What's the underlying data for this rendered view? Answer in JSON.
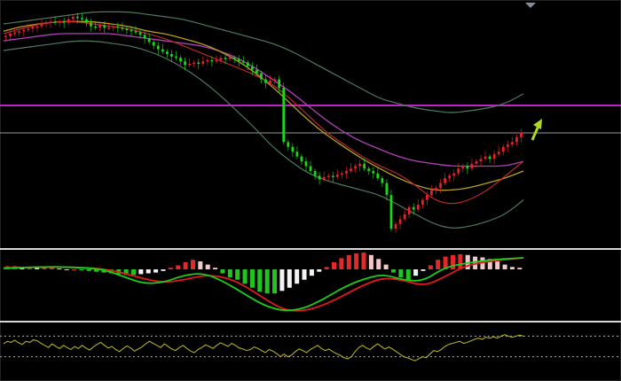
{
  "colors": {
    "background": "#000000",
    "frame": "#d8d8d8",
    "bull_candle": "#e8202a",
    "bear_candle": "#18d818",
    "wick": "#d0d0d0",
    "bollinger": "#4f7a5f",
    "ma_fast": "#c82a2a",
    "ma_mid": "#b8a020",
    "ma_slow": "#b040b8",
    "horizontal_line": "#c024c8",
    "grid_line": "#9a9a9a",
    "macd_pos_strong": "#e02a2a",
    "macd_pos_weak": "#f0c8c8",
    "macd_neg_strong": "#22c422",
    "macd_neg_weak": "#f2f2f2",
    "macd_line": "#1ccc1c",
    "signal_line": "#e01a1a",
    "oscillator": "#b6ac26",
    "dotted_level": "#aaaaaa",
    "forecast_arrow": "#b0d820"
  },
  "icons": {
    "forecast_arrow": "arrow-up-right-icon",
    "scroll_marker": "triangle-down-icon"
  },
  "chart_data": [
    {
      "type": "candlestick",
      "panel": "price",
      "title": "",
      "xlabel": "",
      "ylabel": "",
      "grid": false,
      "legend": "none",
      "ylim": [
        0,
        100
      ],
      "close": [
        88,
        89,
        89.5,
        90,
        90.5,
        91,
        92,
        92,
        93,
        93.5,
        94,
        93.5,
        94,
        93.5,
        95,
        96,
        95.5,
        95,
        93.5,
        92,
        91.5,
        92.5,
        91.5,
        91.5,
        92,
        91.5,
        91,
        90.5,
        90,
        89.5,
        88.5,
        87,
        85.5,
        84,
        82.5,
        81.5,
        80.5,
        79.5,
        79,
        77.5,
        76,
        76.5,
        77,
        76.5,
        77.5,
        78,
        77.5,
        78,
        79,
        78.5,
        79,
        78.5,
        77.5,
        77,
        75.5,
        74,
        72.5,
        70,
        68.5,
        69.5,
        70,
        66.5,
        44,
        42,
        40,
        38,
        36,
        34,
        32,
        30,
        28.5,
        29.5,
        30,
        29.5,
        30.5,
        31,
        32,
        33,
        34,
        35,
        33,
        32,
        31,
        29,
        27,
        22,
        8,
        10,
        12,
        14,
        17,
        16,
        18,
        20,
        22,
        24,
        25,
        27,
        29,
        30,
        31,
        33,
        34,
        33,
        35,
        36,
        37,
        38,
        37,
        39,
        40,
        42,
        43,
        44,
        46,
        48
      ],
      "bollinger_upper": [
        93,
        94,
        95,
        96,
        97,
        98,
        98,
        98,
        97,
        96,
        95,
        93,
        91,
        89,
        87,
        85,
        82,
        78,
        74,
        70,
        66,
        62,
        60,
        58,
        57,
        56,
        57,
        58,
        60,
        64
      ],
      "bollinger_lower": [
        82,
        83,
        84,
        85,
        86,
        86,
        85,
        84,
        82,
        79,
        75,
        70,
        64,
        57,
        50,
        42,
        36,
        31,
        28,
        26,
        24,
        22,
        18,
        14,
        10,
        8,
        9,
        11,
        14,
        20
      ],
      "ma_fast": [
        89,
        91,
        93,
        94,
        94,
        93,
        92,
        91,
        89,
        87,
        84,
        81,
        78,
        75,
        72,
        68,
        62,
        55,
        48,
        43,
        38,
        34,
        31,
        26,
        20,
        18,
        20,
        24,
        30,
        36
      ],
      "ma_mid": [
        90,
        92,
        93,
        94,
        94,
        94,
        93,
        92,
        90,
        89,
        87,
        85,
        82,
        78,
        73,
        67,
        60,
        53,
        47,
        42,
        37,
        33,
        29,
        26,
        24,
        24,
        25,
        27,
        29,
        32
      ],
      "ma_slow": [
        86,
        87,
        88,
        89,
        89,
        89,
        89,
        88,
        87,
        86,
        85,
        84,
        82,
        79,
        75,
        70,
        65,
        59,
        53,
        48,
        44,
        41,
        38,
        36,
        35,
        34,
        34,
        34,
        34,
        36
      ]
    },
    {
      "type": "bar",
      "panel": "macd",
      "title": "",
      "xlabel": "",
      "ylabel": "",
      "grid": false,
      "legend": "none",
      "ylim": [
        -4,
        4
      ],
      "histogram": [
        0.4,
        0.4,
        0.3,
        0.3,
        0.2,
        0.2,
        0.2,
        0.1,
        0,
        0,
        -0.1,
        -0.2,
        -0.3,
        -0.4,
        -0.5,
        -0.6,
        -0.7,
        -0.7,
        -0.6,
        -0.5,
        -0.4,
        -0.2,
        0.2,
        0.5,
        0.9,
        1.2,
        1.0,
        0.6,
        0.2,
        -0.5,
        -1.0,
        -1.3,
        -1.8,
        -2.3,
        -2.8,
        -3.0,
        -3.0,
        -2.7,
        -2.3,
        -1.8,
        -1.3,
        -0.8,
        -0.3,
        0.3,
        0.9,
        1.4,
        1.8,
        2.0,
        2.1,
        1.8,
        1.3,
        0.6,
        -0.4,
        -1.0,
        -1.3,
        -0.8,
        -0.2,
        0.5,
        1.2,
        1.6,
        1.8,
        1.9,
        1.8,
        1.6,
        1.5,
        1.3,
        1.0,
        0.6,
        0.3,
        0.2
      ],
      "macd": [
        0.2,
        0.4,
        0.5,
        0.5,
        0.3,
        0,
        -0.6,
        -1.2,
        -1.1,
        -0.5,
        -0.3,
        -1.0,
        -2.0,
        -3.0,
        -3.5,
        -3.3,
        -2.5,
        -1.5,
        -0.8,
        -0.4,
        -0.9,
        -1.0,
        0.3,
        1.2,
        1.8,
        2.2,
        2.4
      ],
      "signal": [
        0.3,
        0.4,
        0.5,
        0.5,
        0.4,
        0.1,
        -0.3,
        -0.8,
        -1.1,
        -0.9,
        -0.5,
        -0.6,
        -1.3,
        -2.4,
        -3.4,
        -3.5,
        -3.0,
        -2.2,
        -1.3,
        -0.7,
        -0.9,
        -1.4,
        -0.7,
        0.6,
        1.5,
        2.0,
        2.4
      ]
    },
    {
      "type": "line",
      "panel": "oscillator",
      "title": "",
      "xlabel": "",
      "ylabel": "",
      "grid": false,
      "legend": "none",
      "ylim": [
        0,
        100
      ],
      "levels": [
        70,
        30
      ],
      "values": [
        55,
        60,
        58,
        62,
        57,
        54,
        60,
        58,
        63,
        61,
        56,
        52,
        48,
        55,
        50,
        46,
        52,
        48,
        44,
        50,
        46,
        52,
        47,
        43,
        49,
        54,
        58,
        52,
        47,
        50,
        44,
        40,
        46,
        51,
        47,
        41,
        45,
        49,
        55,
        60,
        56,
        52,
        48,
        55,
        50,
        45,
        42,
        48,
        52,
        46,
        41,
        38,
        44,
        48,
        53,
        50,
        46,
        52,
        57,
        54,
        50,
        56,
        52,
        47,
        45,
        42,
        44,
        49,
        46,
        42,
        38,
        44,
        41,
        36,
        30,
        35,
        30,
        33,
        40,
        45,
        42,
        38,
        44,
        48,
        52,
        46,
        42,
        45,
        40,
        36,
        33,
        28,
        26,
        30,
        40,
        48,
        52,
        47,
        44,
        50,
        55,
        50,
        45,
        49,
        45,
        40,
        35,
        30,
        28,
        25,
        22,
        26,
        30,
        28,
        35,
        42,
        40,
        44,
        50,
        54,
        56,
        58,
        60,
        56,
        58,
        61,
        64,
        66,
        64,
        68,
        66,
        69,
        66,
        70,
        73,
        70,
        68,
        70,
        72,
        70
      ]
    }
  ]
}
